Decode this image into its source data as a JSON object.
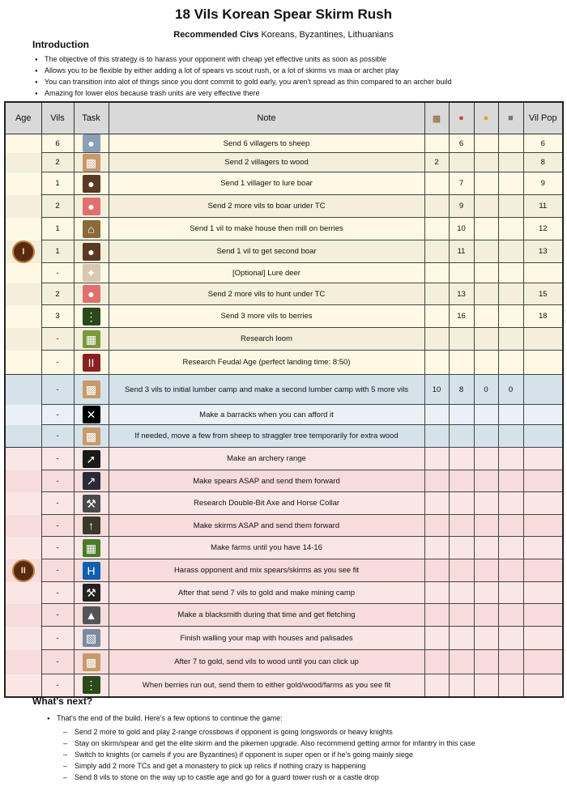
{
  "title": "18 Vils Korean Spear Skirm Rush",
  "civs": {
    "label": "Recommended Civs",
    "value": "Koreans, Byzantines, Lithuanians"
  },
  "intro": {
    "heading": "Introduction",
    "items": [
      "The objective of this strategy is to harass your opponent with cheap yet effective units as soon as possible",
      "Allows you to be flexible by either adding a lot of spears vs scout rush, or a lot of skirms vs maa or archer play",
      "You can transition into alot of things since you dont commit to gold early, you aren't spread as thin compared to an archer build",
      "Amazing for lower elos because trash units are very effective there"
    ]
  },
  "table": {
    "headers": {
      "age": "Age",
      "vils": "Vils",
      "task": "Task",
      "note": "Note",
      "wood": "wood-icon",
      "food": "food-icon",
      "gold": "gold-icon",
      "stone": "stone-icon",
      "vilpop": "Vil Pop"
    },
    "ages": {
      "dark": "I",
      "feudal": "II"
    },
    "colors": {
      "dark": [
        "#fdf9e4",
        "#f4efdb"
      ],
      "transition": [
        "#d5e2ea",
        "#e9f1f6"
      ],
      "feudal": [
        "#fbe6e6",
        "#f7dcdc"
      ]
    },
    "rows": [
      {
        "section": "dark",
        "vils": "6",
        "icon": "sheep",
        "note": "Send 6 villagers to sheep",
        "wood": "",
        "food": "6",
        "gold": "",
        "stone": "",
        "pop": "6"
      },
      {
        "section": "dark",
        "vils": "2",
        "icon": "wood",
        "note": "Send 2 villagers to wood",
        "wood": "2",
        "food": "",
        "gold": "",
        "stone": "",
        "pop": "8"
      },
      {
        "section": "dark",
        "vils": "1",
        "icon": "boar",
        "note": "Send 1 villager to lure boar",
        "wood": "",
        "food": "7",
        "gold": "",
        "stone": "",
        "pop": "9"
      },
      {
        "section": "dark",
        "vils": "2",
        "icon": "meat",
        "note": "Send 2 more vils to boar under TC",
        "wood": "",
        "food": "9",
        "gold": "",
        "stone": "",
        "pop": "11"
      },
      {
        "section": "dark",
        "vils": "1",
        "icon": "house",
        "note": "Send 1 vil to make house then mill on berries",
        "wood": "",
        "food": "10",
        "gold": "",
        "stone": "",
        "pop": "12"
      },
      {
        "section": "dark",
        "vils": "1",
        "icon": "boar",
        "note": "Send 1 vil to get second boar",
        "wood": "",
        "food": "11",
        "gold": "",
        "stone": "",
        "pop": "13"
      },
      {
        "section": "dark",
        "vils": "-",
        "icon": "deer",
        "note": "[Optional] Lure deer",
        "wood": "",
        "food": "",
        "gold": "",
        "stone": "",
        "pop": ""
      },
      {
        "section": "dark",
        "vils": "2",
        "icon": "meat",
        "note": "Send 2 more vils to hunt under TC",
        "wood": "",
        "food": "13",
        "gold": "",
        "stone": "",
        "pop": "15"
      },
      {
        "section": "dark",
        "vils": "3",
        "icon": "berries",
        "note": "Send 3 more vils to berries",
        "wood": "",
        "food": "16",
        "gold": "",
        "stone": "",
        "pop": "18"
      },
      {
        "section": "dark",
        "vils": "-",
        "icon": "loom",
        "note": "Research loom",
        "wood": "",
        "food": "",
        "gold": "",
        "stone": "",
        "pop": ""
      },
      {
        "section": "dark",
        "vils": "-",
        "icon": "feudal-age",
        "note": "Research Feudal Age (perfect landing time: 8:50)",
        "wood": "",
        "food": "",
        "gold": "",
        "stone": "",
        "pop": ""
      },
      {
        "section": "transition",
        "vils": "-",
        "icon": "wood",
        "note": "Send 3 vils to initial lumber camp and make a second lumber camp with 5 more vils",
        "wood": "10",
        "food": "8",
        "gold": "0",
        "stone": "0",
        "pop": ""
      },
      {
        "section": "transition",
        "vils": "-",
        "icon": "swords",
        "note": "Make a barracks when you can afford it",
        "wood": "",
        "food": "",
        "gold": "",
        "stone": "",
        "pop": ""
      },
      {
        "section": "transition",
        "vils": "-",
        "icon": "wood",
        "note": "If needed, move a few from sheep to straggler tree temporarily for extra wood",
        "wood": "",
        "food": "",
        "gold": "",
        "stone": "",
        "pop": ""
      },
      {
        "section": "feudal",
        "vils": "-",
        "icon": "bow",
        "note": "Make an archery range",
        "wood": "",
        "food": "",
        "gold": "",
        "stone": "",
        "pop": ""
      },
      {
        "section": "feudal",
        "vils": "-",
        "icon": "spearman",
        "note": "Make spears ASAP and send them forward",
        "wood": "",
        "food": "",
        "gold": "",
        "stone": "",
        "pop": ""
      },
      {
        "section": "feudal",
        "vils": "-",
        "icon": "axe",
        "note": "Research Double-Bit Axe and Horse Collar",
        "wood": "",
        "food": "",
        "gold": "",
        "stone": "",
        "pop": ""
      },
      {
        "section": "feudal",
        "vils": "-",
        "icon": "skirmisher",
        "note": "Make skirms ASAP and send them forward",
        "wood": "",
        "food": "",
        "gold": "",
        "stone": "",
        "pop": ""
      },
      {
        "section": "feudal",
        "vils": "-",
        "icon": "farm",
        "note": "Make farms until you have 14-16",
        "wood": "",
        "food": "",
        "gold": "",
        "stone": "",
        "pop": ""
      },
      {
        "section": "feudal",
        "vils": "-",
        "icon": "harass",
        "note": "Harass opponent and mix spears/skirms as you see fit",
        "wood": "",
        "food": "",
        "gold": "",
        "stone": "",
        "pop": ""
      },
      {
        "section": "feudal",
        "vils": "-",
        "icon": "gold-mine",
        "note": "After that send 7 vils to gold and make mining camp",
        "wood": "",
        "food": "",
        "gold": "",
        "stone": "",
        "pop": ""
      },
      {
        "section": "feudal",
        "vils": "-",
        "icon": "blacksmith",
        "note": "Make a blacksmith during that time and get fletching",
        "wood": "",
        "food": "",
        "gold": "",
        "stone": "",
        "pop": ""
      },
      {
        "section": "feudal",
        "vils": "-",
        "icon": "palisade",
        "note": "Finish walling your map with houses and palisades",
        "wood": "",
        "food": "",
        "gold": "",
        "stone": "",
        "pop": ""
      },
      {
        "section": "feudal",
        "vils": "-",
        "icon": "wood",
        "note": "After 7 to gold, send vils to wood until you can click up",
        "wood": "",
        "food": "",
        "gold": "",
        "stone": "",
        "pop": ""
      },
      {
        "section": "feudal",
        "vils": "-",
        "icon": "berries",
        "note": "When berries run out, send them to either gold/wood/farms as you see fit",
        "wood": "",
        "food": "",
        "gold": "",
        "stone": "",
        "pop": ""
      }
    ]
  },
  "next": {
    "heading": "What's next?",
    "lead": "That's the end of the build.  Here's a few options to continue the game:",
    "items": [
      "Send 2 more to gold and play 2-range crossbows if opponent is going longswords or heavy knights",
      "Stay on skirm/spear and get the elite skirm and the pikemen upgrade.  Also recommend getting armor for infantry in this case",
      "Switch to knights (or camels if you are Byzantines) if opponent is super open or if he's going mainly siege",
      "Simply add 2 more TCs and get a monastery to pick up relics if nothing crazy is happening",
      "Send 8 vils to stone on the way up to castle age and go for a guard tower rush or a castle drop"
    ]
  }
}
